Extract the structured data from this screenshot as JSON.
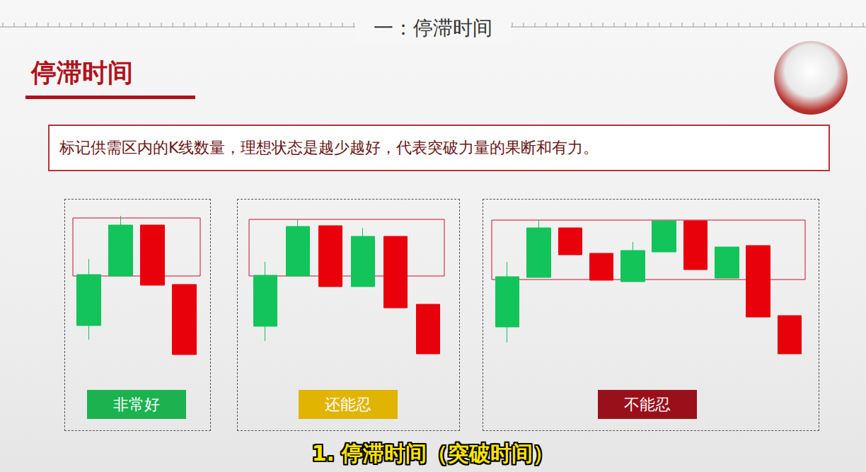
{
  "header": {
    "ruler_title": "一：停滞时间",
    "title": "停滞时间",
    "description": "标记供需区内的K线数量，理想状态是越少越好，代表突破力量的果断和有力。"
  },
  "subtitle": "1. 停滞时间（突破时间）",
  "chart_data": [
    {
      "type": "candlestick",
      "title": "非常好",
      "color": "#1bb24f",
      "ylim": [
        0,
        230
      ],
      "tick_labels": false,
      "grid": false,
      "zone": [
        130,
        212
      ],
      "values": [
        [
          60,
          132,
          40,
          154
        ],
        [
          130,
          202,
          130,
          215
        ],
        [
          202,
          117,
          117,
          202
        ],
        [
          118,
          19,
          19,
          118
        ]
      ]
    },
    {
      "type": "candlestick",
      "title": "还能忍",
      "color": "#e0b400",
      "ylim": [
        0,
        230
      ],
      "tick_labels": false,
      "grid": false,
      "zone": [
        130,
        210
      ],
      "values": [
        [
          59,
          131,
          38,
          150
        ],
        [
          130,
          200,
          130,
          210
        ],
        [
          201,
          115,
          115,
          201
        ],
        [
          115,
          186,
          115,
          198
        ],
        [
          186,
          85,
          85,
          186
        ],
        [
          90,
          20,
          20,
          90
        ]
      ]
    },
    {
      "type": "candlestick",
      "title": "不能忍",
      "color": "#99101a",
      "ylim": [
        0,
        230
      ],
      "tick_labels": false,
      "grid": false,
      "zone": [
        125,
        209
      ],
      "values": [
        [
          58,
          129,
          36,
          150
        ],
        [
          128,
          198,
          128,
          209
        ],
        [
          198,
          160,
          160,
          198
        ],
        [
          162,
          124,
          124,
          162
        ],
        [
          122,
          166,
          122,
          178
        ],
        [
          164,
          208,
          164,
          208
        ],
        [
          208,
          139,
          139,
          208
        ],
        [
          127,
          171,
          127,
          171
        ],
        [
          173,
          72,
          72,
          173
        ],
        [
          74,
          20,
          20,
          74
        ]
      ]
    }
  ]
}
